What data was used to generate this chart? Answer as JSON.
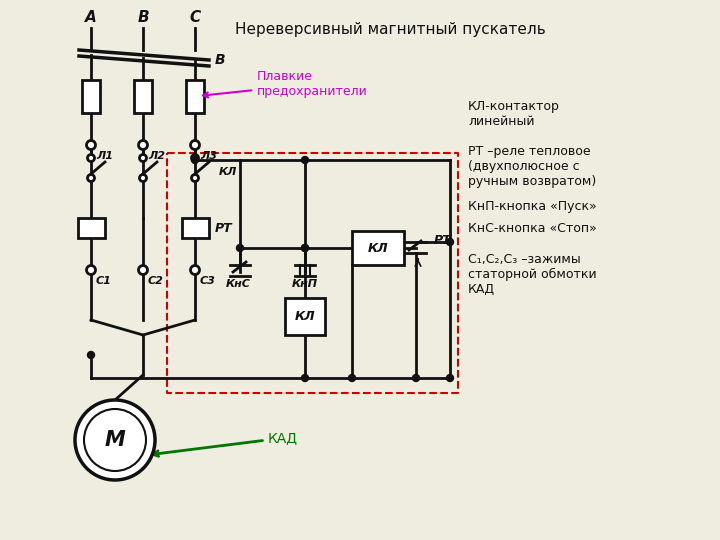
{
  "title": "Нереверсивный магнитный пускатель",
  "bg": "#eeede0",
  "lc": "#111111",
  "dash_c": "#cc0000",
  "mag_c": "#cc00cc",
  "grn_c": "#007700",
  "legend": [
    [
      "КЛ-контактор\nлинейный",
      100
    ],
    [
      "РТ –реле тепловое\n(двухполюсное с\nручным возвратом)",
      145
    ],
    [
      "КнП-кнопка «Пуск»",
      200
    ],
    [
      "КнС-кнопка «Стоп»",
      222
    ],
    [
      "С₁,С₂,С₃ –зажимы\nстаторной обмотки\nКАД",
      253
    ]
  ]
}
